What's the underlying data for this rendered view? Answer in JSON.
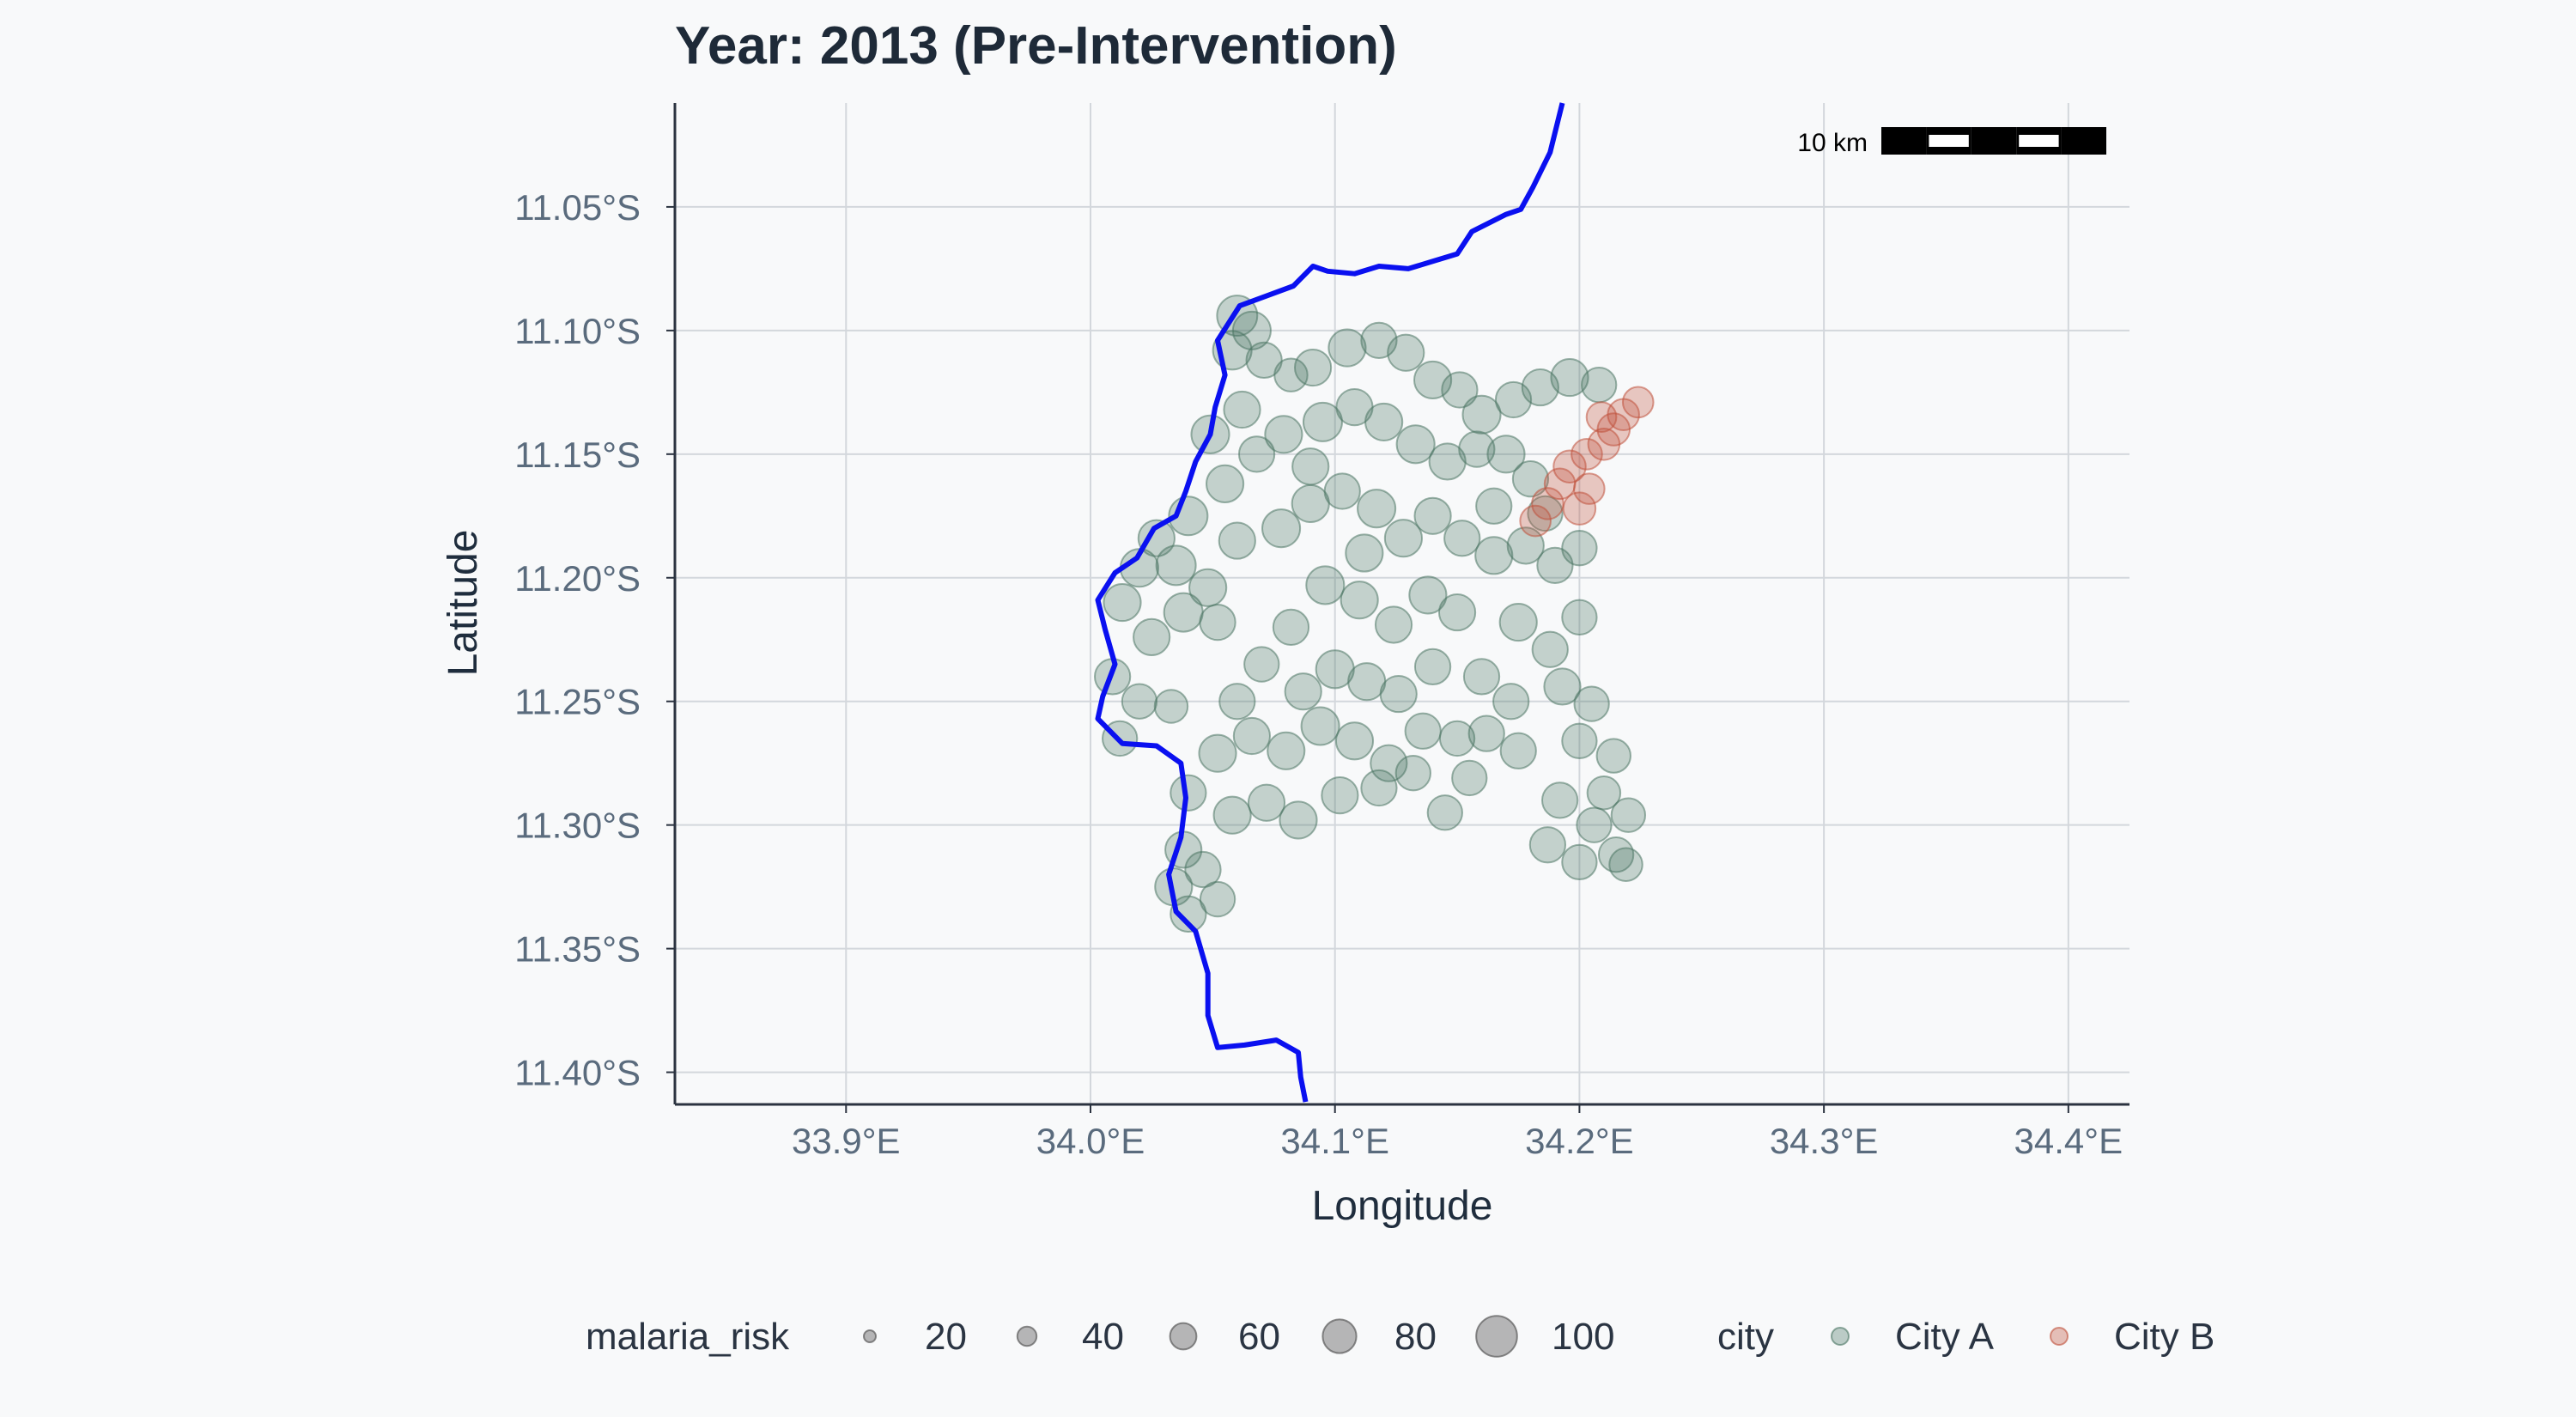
{
  "chart_data": {
    "type": "scatter",
    "title": "Year: 2013 (Pre-Intervention)",
    "xlabel": "Longitude",
    "ylabel": "Latitude",
    "xlim": [
      33.83,
      34.425
    ],
    "ylim": [
      -11.413,
      -11.008
    ],
    "x_ticks": [
      33.9,
      34.0,
      34.1,
      34.2,
      34.3,
      34.4
    ],
    "x_tick_labels": [
      "33.9°E",
      "34.0°E",
      "34.1°E",
      "34.2°E",
      "34.3°E",
      "34.4°E"
    ],
    "y_ticks": [
      -11.05,
      -11.1,
      -11.15,
      -11.2,
      -11.25,
      -11.3,
      -11.35,
      -11.4
    ],
    "y_tick_labels": [
      "11.05°S",
      "11.10°S",
      "11.15°S",
      "11.20°S",
      "11.25°S",
      "11.30°S",
      "11.35°S",
      "11.40°S"
    ],
    "grid": true,
    "scale_bar": {
      "label": "10 km"
    },
    "colors": {
      "City A": "#4a7563",
      "City B": "#c0503a",
      "river": "#0a10f0"
    },
    "river": [
      [
        34.193,
        -11.008
      ],
      [
        34.188,
        -11.028
      ],
      [
        34.181,
        -11.042
      ],
      [
        34.176,
        -11.051
      ],
      [
        34.17,
        -11.053
      ],
      [
        34.164,
        -11.056
      ],
      [
        34.156,
        -11.06
      ],
      [
        34.15,
        -11.069
      ],
      [
        34.14,
        -11.072
      ],
      [
        34.13,
        -11.075
      ],
      [
        34.118,
        -11.074
      ],
      [
        34.108,
        -11.077
      ],
      [
        34.097,
        -11.076
      ],
      [
        34.091,
        -11.074
      ],
      [
        34.083,
        -11.082
      ],
      [
        34.072,
        -11.086
      ],
      [
        34.061,
        -11.09
      ],
      [
        34.052,
        -11.104
      ],
      [
        34.055,
        -11.118
      ],
      [
        34.051,
        -11.131
      ],
      [
        34.049,
        -11.142
      ],
      [
        34.043,
        -11.153
      ],
      [
        34.039,
        -11.165
      ],
      [
        34.035,
        -11.175
      ],
      [
        34.026,
        -11.18
      ],
      [
        34.019,
        -11.192
      ],
      [
        34.01,
        -11.198
      ],
      [
        34.003,
        -11.209
      ],
      [
        34.006,
        -11.221
      ],
      [
        34.01,
        -11.235
      ],
      [
        34.005,
        -11.248
      ],
      [
        34.003,
        -11.257
      ],
      [
        34.013,
        -11.267
      ],
      [
        34.027,
        -11.268
      ],
      [
        34.037,
        -11.275
      ],
      [
        34.039,
        -11.289
      ],
      [
        34.037,
        -11.305
      ],
      [
        34.032,
        -11.32
      ],
      [
        34.035,
        -11.335
      ],
      [
        34.043,
        -11.343
      ],
      [
        34.048,
        -11.36
      ],
      [
        34.048,
        -11.377
      ],
      [
        34.052,
        -11.39
      ],
      [
        34.063,
        -11.389
      ],
      [
        34.076,
        -11.387
      ],
      [
        34.085,
        -11.392
      ],
      [
        34.086,
        -11.402
      ],
      [
        34.088,
        -11.412
      ]
    ],
    "series": [
      {
        "name": "City A",
        "points": [
          [
            34.06,
            -11.094,
            70
          ],
          [
            34.066,
            -11.1,
            64
          ],
          [
            34.058,
            -11.108,
            66
          ],
          [
            34.071,
            -11.112,
            58
          ],
          [
            34.082,
            -11.118,
            52
          ],
          [
            34.091,
            -11.115,
            60
          ],
          [
            34.105,
            -11.107,
            62
          ],
          [
            34.118,
            -11.104,
            58
          ],
          [
            34.129,
            -11.109,
            60
          ],
          [
            34.14,
            -11.12,
            62
          ],
          [
            34.151,
            -11.124,
            58
          ],
          [
            34.16,
            -11.134,
            64
          ],
          [
            34.173,
            -11.128,
            58
          ],
          [
            34.184,
            -11.123,
            60
          ],
          [
            34.196,
            -11.119,
            62
          ],
          [
            34.208,
            -11.122,
            56
          ],
          [
            34.062,
            -11.132,
            60
          ],
          [
            34.049,
            -11.142,
            64
          ],
          [
            34.068,
            -11.15,
            58
          ],
          [
            34.079,
            -11.142,
            62
          ],
          [
            34.095,
            -11.137,
            66
          ],
          [
            34.108,
            -11.131,
            60
          ],
          [
            34.12,
            -11.137,
            62
          ],
          [
            34.133,
            -11.146,
            64
          ],
          [
            34.146,
            -11.153,
            60
          ],
          [
            34.158,
            -11.148,
            58
          ],
          [
            34.17,
            -11.15,
            62
          ],
          [
            34.18,
            -11.16,
            58
          ],
          [
            34.055,
            -11.162,
            62
          ],
          [
            34.04,
            -11.175,
            66
          ],
          [
            34.027,
            -11.184,
            60
          ],
          [
            34.02,
            -11.196,
            64
          ],
          [
            34.035,
            -11.195,
            68
          ],
          [
            34.048,
            -11.204,
            62
          ],
          [
            34.06,
            -11.185,
            60
          ],
          [
            34.078,
            -11.18,
            64
          ],
          [
            34.09,
            -11.17,
            62
          ],
          [
            34.103,
            -11.165,
            58
          ],
          [
            34.117,
            -11.172,
            64
          ],
          [
            34.128,
            -11.184,
            62
          ],
          [
            34.14,
            -11.175,
            60
          ],
          [
            34.152,
            -11.184,
            58
          ],
          [
            34.165,
            -11.191,
            62
          ],
          [
            34.178,
            -11.187,
            60
          ],
          [
            34.19,
            -11.195,
            58
          ],
          [
            34.2,
            -11.188,
            56
          ],
          [
            34.013,
            -11.21,
            62
          ],
          [
            34.025,
            -11.224,
            60
          ],
          [
            34.038,
            -11.214,
            66
          ],
          [
            34.052,
            -11.218,
            58
          ],
          [
            34.096,
            -11.203,
            64
          ],
          [
            34.11,
            -11.209,
            62
          ],
          [
            34.124,
            -11.219,
            60
          ],
          [
            34.138,
            -11.207,
            62
          ],
          [
            34.15,
            -11.214,
            60
          ],
          [
            34.175,
            -11.218,
            62
          ],
          [
            34.188,
            -11.229,
            58
          ],
          [
            34.2,
            -11.216,
            56
          ],
          [
            34.009,
            -11.24,
            58
          ],
          [
            34.02,
            -11.25,
            56
          ],
          [
            34.033,
            -11.252,
            52
          ],
          [
            34.087,
            -11.246,
            60
          ],
          [
            34.1,
            -11.237,
            64
          ],
          [
            34.113,
            -11.242,
            62
          ],
          [
            34.126,
            -11.247,
            60
          ],
          [
            34.14,
            -11.236,
            58
          ],
          [
            34.193,
            -11.244,
            60
          ],
          [
            34.205,
            -11.251,
            56
          ],
          [
            34.012,
            -11.265,
            56
          ],
          [
            34.052,
            -11.271,
            62
          ],
          [
            34.066,
            -11.264,
            60
          ],
          [
            34.08,
            -11.27,
            62
          ],
          [
            34.094,
            -11.26,
            64
          ],
          [
            34.108,
            -11.266,
            62
          ],
          [
            34.122,
            -11.275,
            60
          ],
          [
            34.136,
            -11.262,
            58
          ],
          [
            34.15,
            -11.265,
            56
          ],
          [
            34.162,
            -11.263,
            58
          ],
          [
            34.175,
            -11.27,
            58
          ],
          [
            34.2,
            -11.266,
            56
          ],
          [
            34.214,
            -11.272,
            54
          ],
          [
            34.04,
            -11.287,
            58
          ],
          [
            34.058,
            -11.296,
            62
          ],
          [
            34.072,
            -11.291,
            60
          ],
          [
            34.085,
            -11.298,
            62
          ],
          [
            34.102,
            -11.288,
            60
          ],
          [
            34.118,
            -11.285,
            58
          ],
          [
            34.132,
            -11.279,
            56
          ],
          [
            34.155,
            -11.281,
            56
          ],
          [
            34.192,
            -11.29,
            58
          ],
          [
            34.206,
            -11.3,
            56
          ],
          [
            34.22,
            -11.296,
            54
          ],
          [
            34.038,
            -11.31,
            60
          ],
          [
            34.046,
            -11.318,
            58
          ],
          [
            34.034,
            -11.325,
            62
          ],
          [
            34.04,
            -11.336,
            58
          ],
          [
            34.052,
            -11.33,
            56
          ],
          [
            34.187,
            -11.308,
            58
          ],
          [
            34.2,
            -11.315,
            56
          ],
          [
            34.215,
            -11.312,
            56
          ],
          [
            34.219,
            -11.316,
            52
          ],
          [
            34.21,
            -11.287,
            52
          ],
          [
            34.082,
            -11.22,
            58
          ],
          [
            34.07,
            -11.235,
            56
          ],
          [
            34.16,
            -11.24,
            58
          ],
          [
            34.172,
            -11.25,
            58
          ],
          [
            34.09,
            -11.155,
            60
          ],
          [
            34.165,
            -11.171,
            58
          ],
          [
            34.186,
            -11.174,
            56
          ],
          [
            34.112,
            -11.19,
            62
          ],
          [
            34.06,
            -11.25,
            58
          ],
          [
            34.145,
            -11.295,
            56
          ]
        ]
      },
      {
        "name": "City B",
        "points": [
          [
            34.224,
            -11.129,
            46
          ],
          [
            34.218,
            -11.134,
            48
          ],
          [
            34.214,
            -11.14,
            50
          ],
          [
            34.21,
            -11.146,
            48
          ],
          [
            34.203,
            -11.15,
            46
          ],
          [
            34.196,
            -11.155,
            50
          ],
          [
            34.192,
            -11.162,
            46
          ],
          [
            34.187,
            -11.17,
            48
          ],
          [
            34.182,
            -11.177,
            46
          ],
          [
            34.2,
            -11.172,
            50
          ],
          [
            34.204,
            -11.164,
            46
          ],
          [
            34.209,
            -11.135,
            44
          ]
        ]
      }
    ],
    "legend": {
      "size_title": "malaria_risk",
      "size_values": [
        20,
        40,
        60,
        80,
        100
      ],
      "color_title": "city",
      "color_values": [
        "City A",
        "City B"
      ]
    }
  }
}
